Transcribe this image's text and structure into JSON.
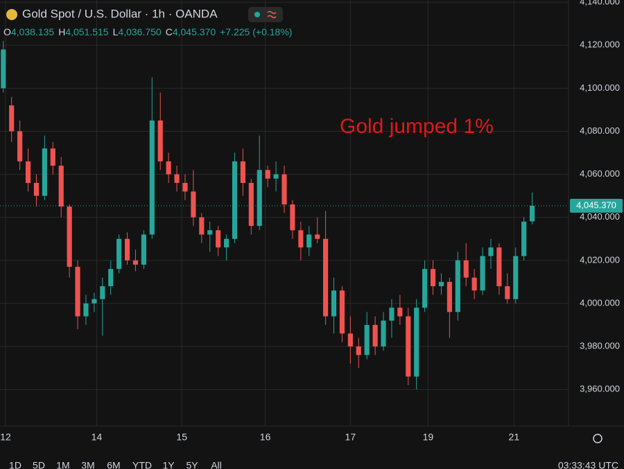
{
  "header": {
    "title": "Gold Spot / U.S. Dollar · 1h · OANDA",
    "ohlc": [
      {
        "label": "O",
        "value": "4,038.135"
      },
      {
        "label": "H",
        "value": "4,051.515"
      },
      {
        "label": "L",
        "value": "4,036.750"
      },
      {
        "label": "C",
        "value": "4,045.370"
      }
    ],
    "change": "+7.225 (+0.18%)"
  },
  "chart_data": {
    "type": "candlestick",
    "annotation": "Gold jumped 1%",
    "up_color": "#26a69a",
    "down_color": "#ef5350",
    "grid": true,
    "x": [
      0,
      1,
      2,
      3,
      4,
      5,
      6,
      7,
      8,
      9,
      10,
      11,
      12,
      13,
      14,
      15,
      16,
      17,
      18,
      19,
      20,
      21,
      22,
      23,
      24,
      25,
      26,
      27,
      28,
      29,
      30,
      31,
      32,
      33,
      34,
      35,
      36,
      37,
      38,
      39,
      40,
      41,
      42,
      43,
      44,
      45,
      46,
      47,
      48,
      49,
      50,
      51,
      52,
      53,
      54,
      55,
      56,
      57,
      58,
      59,
      60,
      61,
      62,
      63,
      64
    ],
    "open": [
      4100,
      4092,
      4080,
      4066,
      4056,
      4050,
      4072,
      4064,
      4045,
      4017,
      3994,
      4000,
      4002,
      4008,
      4016,
      4030,
      4020,
      4018,
      4032,
      4085,
      4066,
      4060,
      4056,
      4052,
      4040,
      4032,
      4034,
      4026,
      4030,
      4066,
      4056,
      4036,
      4062,
      4058,
      4060,
      4046,
      4034,
      4026,
      4032,
      4030,
      3994,
      4006,
      3986,
      3980,
      3976,
      3990,
      3980,
      3992,
      3998,
      3994,
      3966,
      3998,
      4016,
      4008,
      4010,
      3996,
      4020,
      4012,
      4006,
      4022,
      4026,
      4008,
      4002,
      4022,
      4038.135
    ],
    "high": [
      4122,
      4096,
      4085,
      4072,
      4060,
      4078,
      4075,
      4068,
      4046,
      4020,
      4004,
      4005,
      4012,
      4020,
      4032,
      4033,
      4025,
      4034,
      4105,
      4098,
      4070,
      4064,
      4060,
      4062,
      4042,
      4038,
      4036,
      4032,
      4070,
      4072,
      4058,
      4078,
      4064,
      4066,
      4064,
      4048,
      4038,
      4036,
      4040,
      4043,
      4012,
      4008,
      3994,
      3984,
      3996,
      3994,
      3996,
      4002,
      4004,
      3998,
      4002,
      4020,
      4020,
      4014,
      4012,
      4024,
      4028,
      4016,
      4026,
      4030,
      4028,
      4014,
      4026,
      4040,
      4051.515
    ],
    "low": [
      4098,
      4075,
      4062,
      4052,
      4045,
      4048,
      4060,
      4040,
      4012,
      3988,
      3990,
      3996,
      3985,
      4004,
      4014,
      4018,
      4015,
      4016,
      4030,
      4062,
      4056,
      4052,
      4048,
      4036,
      4028,
      4024,
      4022,
      4020,
      4028,
      4050,
      4032,
      4034,
      4054,
      4052,
      4042,
      4030,
      4020,
      4022,
      4028,
      3990,
      3986,
      3982,
      3972,
      3970,
      3974,
      3976,
      3978,
      3984,
      3990,
      3962,
      3960,
      3996,
      4004,
      4004,
      3984,
      3992,
      4008,
      4002,
      4004,
      4016,
      4004,
      4000,
      4000,
      4020,
      4036.75
    ],
    "close": [
      4118,
      4080,
      4066,
      4056,
      4050,
      4072,
      4064,
      4045,
      4017,
      3994,
      4000,
      4002,
      4008,
      4016,
      4030,
      4020,
      4018,
      4032,
      4085,
      4066,
      4060,
      4056,
      4052,
      4040,
      4032,
      4034,
      4026,
      4030,
      4066,
      4056,
      4036,
      4062,
      4058,
      4060,
      4046,
      4034,
      4026,
      4032,
      4030,
      3994,
      4006,
      3986,
      3980,
      3976,
      3990,
      3980,
      3992,
      3998,
      3994,
      3966,
      3998,
      4016,
      4008,
      4010,
      3996,
      4020,
      4012,
      4006,
      4022,
      4026,
      4008,
      4002,
      4022,
      4038,
      4045.37
    ],
    "xlim": [
      -0.4,
      68.4
    ],
    "xticks": [
      {
        "value": 0.27,
        "label": "12"
      },
      {
        "value": 11.3,
        "label": "14"
      },
      {
        "value": 21.6,
        "label": "15"
      },
      {
        "value": 31.7,
        "label": "16"
      },
      {
        "value": 42.0,
        "label": "17"
      },
      {
        "value": 51.4,
        "label": "19"
      },
      {
        "value": 61.8,
        "label": "21"
      }
    ],
    "ylim": [
      3943,
      4141
    ],
    "yticks": [
      {
        "value": 3960,
        "label": "3,960.000"
      },
      {
        "value": 3980,
        "label": "3,980.000"
      },
      {
        "value": 4000,
        "label": "4,000.000"
      },
      {
        "value": 4020,
        "label": "4,020.000"
      },
      {
        "value": 4040,
        "label": "4,040.000"
      },
      {
        "value": 4060,
        "label": "4,060.000"
      },
      {
        "value": 4080,
        "label": "4,080.000"
      },
      {
        "value": 4100,
        "label": "4,100.000"
      },
      {
        "value": 4120,
        "label": "4,120.000"
      },
      {
        "value": 4140,
        "label": "4,140.000"
      }
    ],
    "last_price": {
      "value": 4045.37,
      "label": "4,045.370"
    }
  },
  "footer": {
    "ranges": [
      "1D",
      "5D",
      "1M",
      "3M",
      "6M",
      "YTD",
      "1Y",
      "5Y",
      "All"
    ],
    "clock": "03:33:43 UTC"
  }
}
